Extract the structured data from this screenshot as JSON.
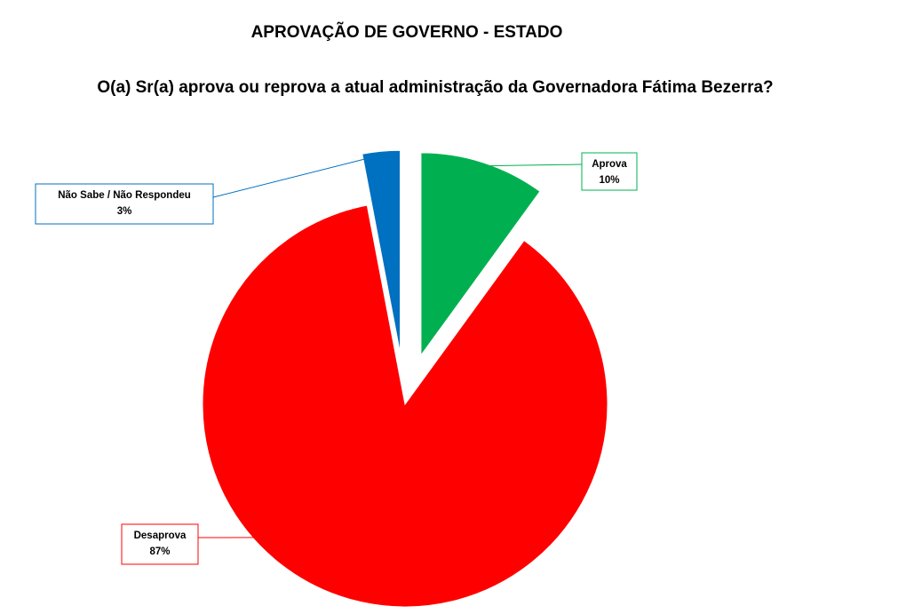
{
  "chart_data": {
    "type": "pie",
    "title": "APROVAÇÃO DE GOVERNO - ESTADO",
    "subtitle": "O(a) Sr(a) aprova ou reprova a atual administração da Governadora Fátima Bezerra?",
    "categories": [
      "Aprova",
      "Desaprova",
      "Não Sabe / Não Respondeu"
    ],
    "values": [
      10,
      87,
      3
    ],
    "value_labels": [
      "10%",
      "87%",
      "3%"
    ],
    "colors": [
      "#00b050",
      "#ff0000",
      "#0070c0"
    ]
  }
}
